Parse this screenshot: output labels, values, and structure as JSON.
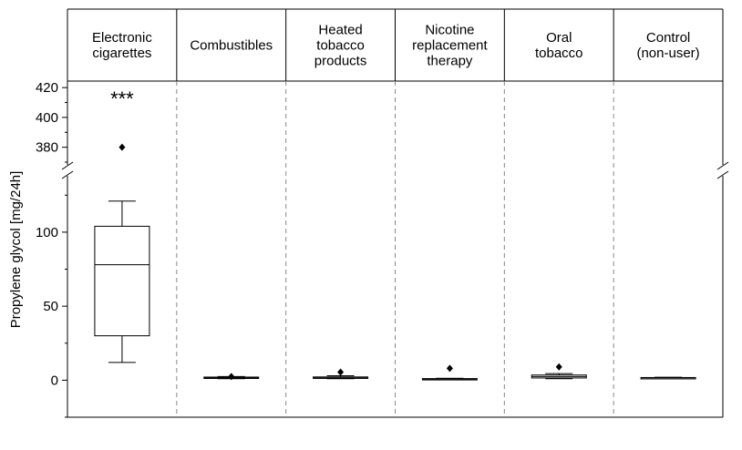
{
  "chart_data": {
    "type": "box",
    "title": "",
    "xlabel": "",
    "ylabel": "Propylene glycol [mg/24h]",
    "y_axis_break": {
      "lower_range": [
        -25,
        135
      ],
      "upper_range": [
        370,
        425
      ]
    },
    "y_ticks_lower": [
      0,
      50,
      100
    ],
    "y_ticks_upper": [
      380,
      400,
      420
    ],
    "grid": false,
    "legend": "none",
    "categories": [
      {
        "lines": [
          "Electronic",
          "cigarettes"
        ]
      },
      {
        "lines": [
          "Combustibles"
        ]
      },
      {
        "lines": [
          "Heated",
          "tobacco",
          "products"
        ]
      },
      {
        "lines": [
          "Nicotine",
          "replacement",
          "therapy"
        ]
      },
      {
        "lines": [
          "Oral",
          "tobacco"
        ]
      },
      {
        "lines": [
          "Control",
          "(non-user)"
        ]
      }
    ],
    "boxes": [
      {
        "whisker_low": 12,
        "q1": 30,
        "median": 78,
        "q3": 104,
        "whisker_high": 121,
        "outliers": [
          380
        ],
        "significance": "***"
      },
      {
        "whisker_low": 1,
        "q1": 1.3,
        "median": 1.7,
        "q3": 2.1,
        "whisker_high": 2.5,
        "outliers": [
          2.5
        ],
        "significance": ""
      },
      {
        "whisker_low": 1,
        "q1": 1.2,
        "median": 1.6,
        "q3": 2.2,
        "whisker_high": 3,
        "outliers": [
          5.5
        ],
        "significance": ""
      },
      {
        "whisker_low": 0.5,
        "q1": 0.6,
        "median": 0.8,
        "q3": 1.1,
        "whisker_high": 1.3,
        "outliers": [
          8
        ],
        "significance": ""
      },
      {
        "whisker_low": 1,
        "q1": 1.5,
        "median": 2.5,
        "q3": 3.5,
        "whisker_high": 4.5,
        "outliers": [
          9
        ],
        "significance": ""
      },
      {
        "whisker_low": 1.2,
        "q1": 1.4,
        "median": 1.6,
        "q3": 1.8,
        "whisker_high": 2,
        "outliers": [],
        "significance": ""
      }
    ]
  }
}
